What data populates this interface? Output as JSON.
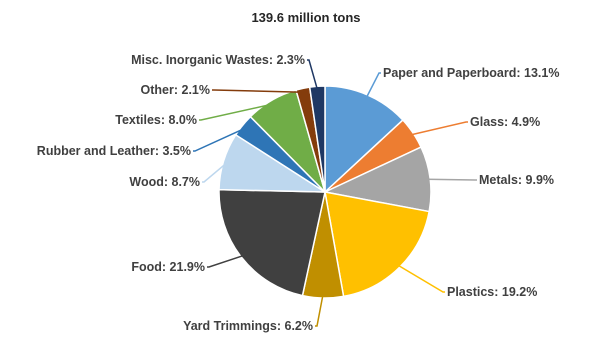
{
  "chart_data": {
    "type": "pie",
    "title": "139.6 million tons",
    "slices": [
      {
        "label": "Paper and Paperboard",
        "value": 13.1,
        "display": "Paper and Paperboard: 13.1%",
        "color": "#5B9BD5"
      },
      {
        "label": "Glass",
        "value": 4.9,
        "display": "Glass: 4.9%",
        "color": "#ED7D31"
      },
      {
        "label": "Metals",
        "value": 9.9,
        "display": "Metals: 9.9%",
        "color": "#A5A5A5"
      },
      {
        "label": "Plastics",
        "value": 19.2,
        "display": "Plastics: 19.2%",
        "color": "#FFC000"
      },
      {
        "label": "Yard Trimmings",
        "value": 6.2,
        "display": "Yard Trimmings: 6.2%",
        "color": "#C08F00"
      },
      {
        "label": "Food",
        "value": 21.9,
        "display": "Food: 21.9%",
        "color": "#404040"
      },
      {
        "label": "Wood",
        "value": 8.7,
        "display": "Wood: 8.7%",
        "color": "#BDD7EE"
      },
      {
        "label": "Rubber and Leather",
        "value": 3.5,
        "display": "Rubber and Leather: 3.5%",
        "color": "#2E75B6"
      },
      {
        "label": "Textiles",
        "value": 8.0,
        "display": "Textiles: 8.0%",
        "color": "#70AD47"
      },
      {
        "label": "Other",
        "value": 2.1,
        "display": "Other: 2.1%",
        "color": "#843C0C"
      },
      {
        "label": "Misc. Inorganic Wastes",
        "value": 2.3,
        "display": "Misc. Inorganic Wastes: 2.3%",
        "color": "#1F3864"
      }
    ]
  }
}
